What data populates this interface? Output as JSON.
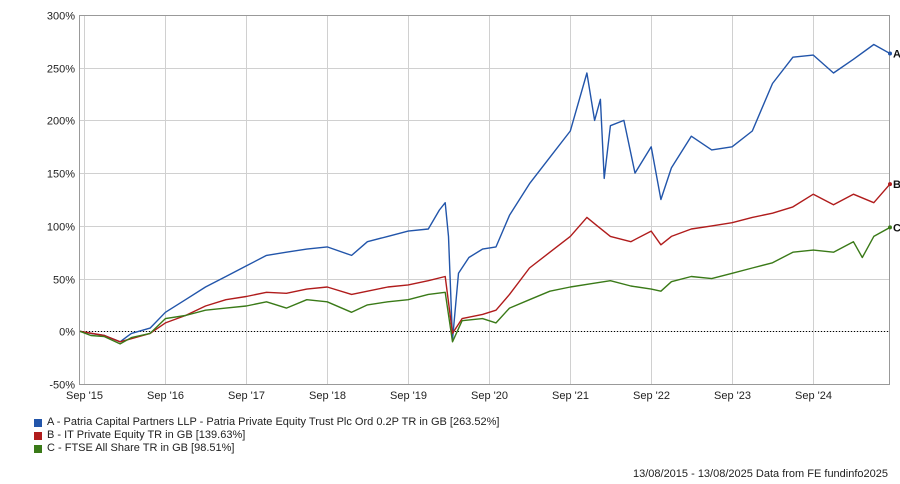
{
  "chart_data": {
    "type": "line",
    "x_ticks": [
      "Sep '15",
      "Sep '16",
      "Sep '17",
      "Sep '18",
      "Sep '19",
      "Sep '20",
      "Sep '21",
      "Sep '22",
      "Sep '23",
      "Sep '24"
    ],
    "y_ticks": [
      "300%",
      "250%",
      "200%",
      "150%",
      "100%",
      "50%",
      "0%",
      "-50%"
    ],
    "ylim": [
      -50,
      300
    ],
    "xlim": [
      "2015-08-13",
      "2025-08-13"
    ],
    "grid": true,
    "legend_position": "bottom-left",
    "series": [
      {
        "name": "A - Patria Capital Partners LLP - Patria Private Equity Trust Plc Ord 0.2P TR in GB [263.52%]",
        "end_marker": "A",
        "color": "#2255aa",
        "points": [
          [
            "2015-08-13",
            0
          ],
          [
            "2015-10-01",
            -2
          ],
          [
            "2015-12-01",
            -4
          ],
          [
            "2016-02-10",
            -10
          ],
          [
            "2016-04-01",
            -2
          ],
          [
            "2016-06-24",
            3
          ],
          [
            "2016-09-01",
            18
          ],
          [
            "2016-12-01",
            30
          ],
          [
            "2017-03-01",
            42
          ],
          [
            "2017-06-01",
            52
          ],
          [
            "2017-09-01",
            62
          ],
          [
            "2017-12-01",
            72
          ],
          [
            "2018-03-01",
            75
          ],
          [
            "2018-06-01",
            78
          ],
          [
            "2018-09-01",
            80
          ],
          [
            "2018-12-20",
            72
          ],
          [
            "2019-03-01",
            85
          ],
          [
            "2019-06-01",
            90
          ],
          [
            "2019-09-01",
            95
          ],
          [
            "2019-12-01",
            97
          ],
          [
            "2020-01-20",
            115
          ],
          [
            "2020-02-15",
            122
          ],
          [
            "2020-03-01",
            90
          ],
          [
            "2020-03-19",
            -8
          ],
          [
            "2020-04-15",
            55
          ],
          [
            "2020-06-01",
            70
          ],
          [
            "2020-08-01",
            78
          ],
          [
            "2020-10-01",
            80
          ],
          [
            "2020-12-01",
            110
          ],
          [
            "2021-03-01",
            140
          ],
          [
            "2021-06-01",
            165
          ],
          [
            "2021-09-01",
            190
          ],
          [
            "2021-11-15",
            245
          ],
          [
            "2021-12-20",
            200
          ],
          [
            "2022-01-15",
            220
          ],
          [
            "2022-02-01",
            145
          ],
          [
            "2022-03-01",
            195
          ],
          [
            "2022-05-01",
            200
          ],
          [
            "2022-06-20",
            150
          ],
          [
            "2022-09-01",
            175
          ],
          [
            "2022-10-15",
            125
          ],
          [
            "2022-12-01",
            155
          ],
          [
            "2023-03-01",
            185
          ],
          [
            "2023-06-01",
            172
          ],
          [
            "2023-09-01",
            175
          ],
          [
            "2023-12-01",
            190
          ],
          [
            "2024-03-01",
            235
          ],
          [
            "2024-06-01",
            260
          ],
          [
            "2024-09-01",
            262
          ],
          [
            "2024-12-01",
            245
          ],
          [
            "2025-03-01",
            258
          ],
          [
            "2025-06-01",
            272
          ],
          [
            "2025-08-13",
            263.52
          ]
        ]
      },
      {
        "name": "B - IT Private Equity TR in GB [139.63%]",
        "end_marker": "B",
        "color": "#b01c1c",
        "points": [
          [
            "2015-08-13",
            0
          ],
          [
            "2015-12-01",
            -4
          ],
          [
            "2016-02-10",
            -10
          ],
          [
            "2016-06-24",
            -2
          ],
          [
            "2016-09-01",
            8
          ],
          [
            "2016-12-01",
            15
          ],
          [
            "2017-03-01",
            24
          ],
          [
            "2017-06-01",
            30
          ],
          [
            "2017-09-01",
            33
          ],
          [
            "2017-12-01",
            37
          ],
          [
            "2018-03-01",
            36
          ],
          [
            "2018-06-01",
            40
          ],
          [
            "2018-09-01",
            42
          ],
          [
            "2018-12-20",
            35
          ],
          [
            "2019-03-01",
            38
          ],
          [
            "2019-06-01",
            42
          ],
          [
            "2019-09-01",
            44
          ],
          [
            "2019-12-01",
            48
          ],
          [
            "2020-02-15",
            52
          ],
          [
            "2020-03-19",
            -2
          ],
          [
            "2020-05-01",
            12
          ],
          [
            "2020-08-01",
            16
          ],
          [
            "2020-10-01",
            20
          ],
          [
            "2020-12-01",
            35
          ],
          [
            "2021-03-01",
            60
          ],
          [
            "2021-06-01",
            75
          ],
          [
            "2021-09-01",
            90
          ],
          [
            "2021-11-15",
            108
          ],
          [
            "2022-01-01",
            100
          ],
          [
            "2022-03-01",
            90
          ],
          [
            "2022-06-01",
            85
          ],
          [
            "2022-09-01",
            95
          ],
          [
            "2022-10-15",
            82
          ],
          [
            "2022-12-01",
            90
          ],
          [
            "2023-03-01",
            97
          ],
          [
            "2023-06-01",
            100
          ],
          [
            "2023-09-01",
            103
          ],
          [
            "2023-12-01",
            108
          ],
          [
            "2024-03-01",
            112
          ],
          [
            "2024-06-01",
            118
          ],
          [
            "2024-09-01",
            130
          ],
          [
            "2024-12-01",
            120
          ],
          [
            "2025-03-01",
            130
          ],
          [
            "2025-06-01",
            122
          ],
          [
            "2025-08-13",
            139.63
          ]
        ]
      },
      {
        "name": "C - FTSE All Share TR in GB [98.51%]",
        "end_marker": "C",
        "color": "#3a7a18",
        "points": [
          [
            "2015-08-13",
            0
          ],
          [
            "2015-10-01",
            -4
          ],
          [
            "2015-12-01",
            -5
          ],
          [
            "2016-02-10",
            -12
          ],
          [
            "2016-04-01",
            -6
          ],
          [
            "2016-06-24",
            -2
          ],
          [
            "2016-09-01",
            12
          ],
          [
            "2016-12-01",
            15
          ],
          [
            "2017-03-01",
            20
          ],
          [
            "2017-06-01",
            22
          ],
          [
            "2017-09-01",
            24
          ],
          [
            "2017-12-01",
            28
          ],
          [
            "2018-03-01",
            22
          ],
          [
            "2018-06-01",
            30
          ],
          [
            "2018-09-01",
            28
          ],
          [
            "2018-12-20",
            18
          ],
          [
            "2019-03-01",
            25
          ],
          [
            "2019-06-01",
            28
          ],
          [
            "2019-09-01",
            30
          ],
          [
            "2019-12-01",
            35
          ],
          [
            "2020-02-15",
            37
          ],
          [
            "2020-03-19",
            -10
          ],
          [
            "2020-05-01",
            10
          ],
          [
            "2020-08-01",
            12
          ],
          [
            "2020-10-01",
            8
          ],
          [
            "2020-12-01",
            22
          ],
          [
            "2021-03-01",
            30
          ],
          [
            "2021-06-01",
            38
          ],
          [
            "2021-09-01",
            42
          ],
          [
            "2021-12-01",
            45
          ],
          [
            "2022-03-01",
            48
          ],
          [
            "2022-06-01",
            43
          ],
          [
            "2022-09-01",
            40
          ],
          [
            "2022-10-15",
            38
          ],
          [
            "2022-12-01",
            47
          ],
          [
            "2023-03-01",
            52
          ],
          [
            "2023-06-01",
            50
          ],
          [
            "2023-09-01",
            55
          ],
          [
            "2023-12-01",
            60
          ],
          [
            "2024-03-01",
            65
          ],
          [
            "2024-06-01",
            75
          ],
          [
            "2024-09-01",
            77
          ],
          [
            "2024-12-01",
            75
          ],
          [
            "2025-03-01",
            85
          ],
          [
            "2025-04-10",
            70
          ],
          [
            "2025-06-01",
            90
          ],
          [
            "2025-08-13",
            98.51
          ]
        ]
      }
    ],
    "footer": "13/08/2015 - 13/08/2025 Data from FE fundinfo2025"
  }
}
